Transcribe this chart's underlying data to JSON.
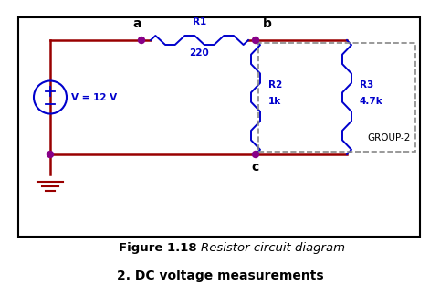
{
  "bg_color": "#ffffff",
  "border_color": "#000000",
  "wire_color": "#990000",
  "component_color": "#0000cc",
  "node_color": "#880088",
  "figure_caption_bold": "Figure 1.18 ",
  "figure_caption_italic": "Resistor circuit diagram",
  "subtitle": "2. DC voltage measurements",
  "node_a_label": "a",
  "node_b_label": "b",
  "node_c_label": "c",
  "r1_label": "R1",
  "r1_value": "220",
  "r2_label": "R2",
  "r2_value": "1k",
  "r3_label": "R3",
  "r3_value": "4.7k",
  "group_label": "GROUP-2",
  "voltage_label": "V = 12 V"
}
